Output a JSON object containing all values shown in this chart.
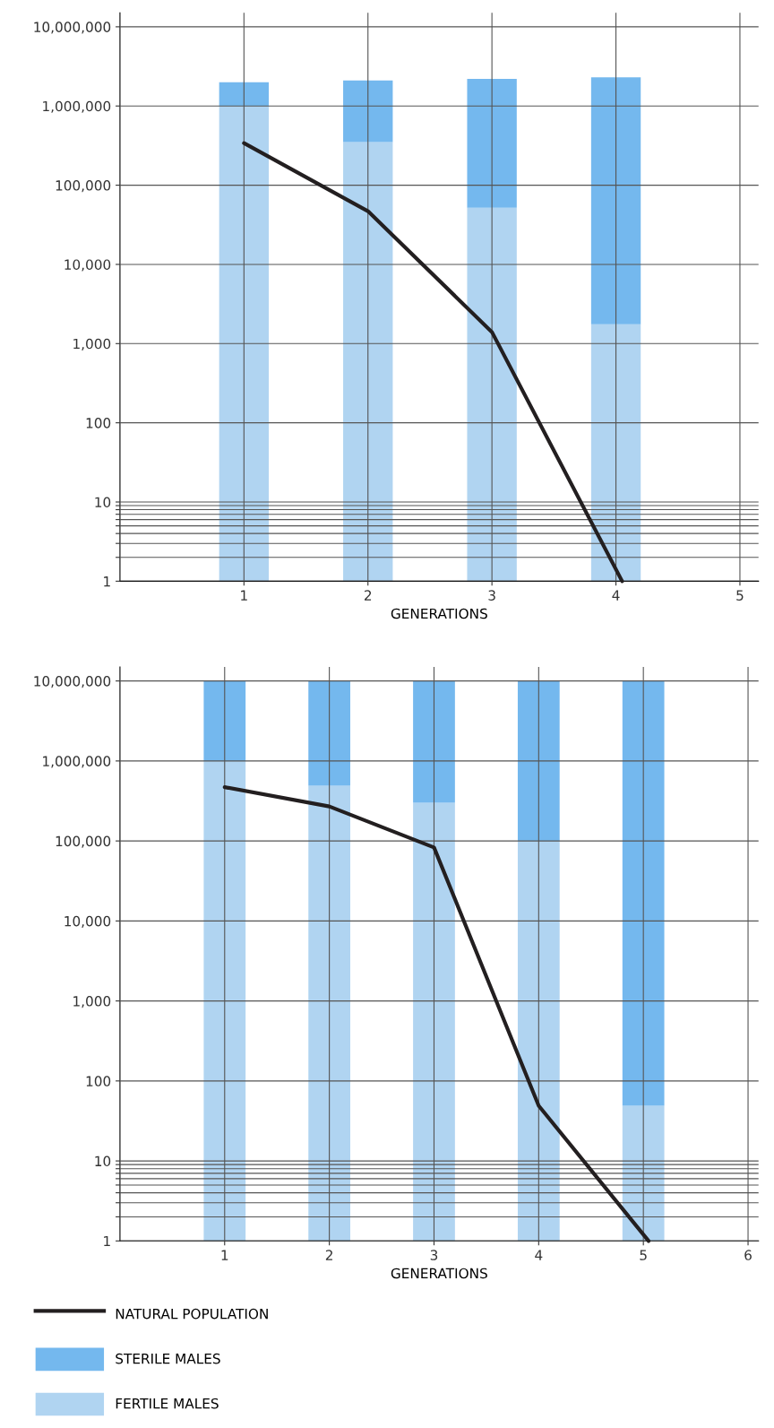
{
  "chart_data": [
    {
      "type": "bar",
      "stacked": true,
      "log": true,
      "x": [
        1,
        2,
        3,
        4
      ],
      "xlabel": "GENERATIONS",
      "xlim": [
        0,
        5.15
      ],
      "xticks": [
        1,
        2,
        3,
        4,
        5
      ],
      "ylim": [
        1,
        15000000
      ],
      "yticks": [
        {
          "value": 1,
          "label": "1"
        },
        {
          "value": 2,
          "label": null
        },
        {
          "value": 3,
          "label": null
        },
        {
          "value": 4,
          "label": null
        },
        {
          "value": 5,
          "label": null
        },
        {
          "value": 6,
          "label": null
        },
        {
          "value": 7,
          "label": null
        },
        {
          "value": 8,
          "label": null
        },
        {
          "value": 9,
          "label": null
        },
        {
          "value": 10,
          "label": "10"
        },
        {
          "value": 100,
          "label": "100"
        },
        {
          "value": 1000,
          "label": "1,000"
        },
        {
          "value": 10000,
          "label": "10,000"
        },
        {
          "value": 100000,
          "label": "100,000"
        },
        {
          "value": 1000000,
          "label": "1,000,000"
        },
        {
          "value": 10000000,
          "label": "10,000,000"
        }
      ],
      "grid": true,
      "legend": false,
      "series": [
        {
          "color": "#b0d4f1",
          "values": [
            1000000,
            350000,
            52000,
            1750
          ]
        },
        {
          "color": "#74b8ee",
          "values": [
            1000000,
            1750000,
            2150000,
            2300000
          ]
        },
        {
          "type": "line",
          "color": "#231f20",
          "x": [
            1,
            2,
            3,
            4.05
          ],
          "values": [
            340000,
            47000,
            1400,
            1
          ]
        }
      ]
    },
    {
      "type": "bar",
      "stacked": true,
      "log": true,
      "x": [
        1,
        2,
        3,
        4,
        5
      ],
      "xlabel": "GENERATIONS",
      "xlim": [
        0,
        6.1
      ],
      "xticks": [
        1,
        2,
        3,
        4,
        5,
        6
      ],
      "ylim": [
        1,
        15000000
      ],
      "yticks": [
        {
          "value": 1,
          "label": "1"
        },
        {
          "value": 2,
          "label": null
        },
        {
          "value": 3,
          "label": null
        },
        {
          "value": 4,
          "label": null
        },
        {
          "value": 5,
          "label": null
        },
        {
          "value": 6,
          "label": null
        },
        {
          "value": 7,
          "label": null
        },
        {
          "value": 8,
          "label": null
        },
        {
          "value": 9,
          "label": null
        },
        {
          "value": 10,
          "label": "10"
        },
        {
          "value": 100,
          "label": "100"
        },
        {
          "value": 1000,
          "label": "1,000"
        },
        {
          "value": 10000,
          "label": "10,000"
        },
        {
          "value": 100000,
          "label": "100,000"
        },
        {
          "value": 1000000,
          "label": "1,000,000"
        },
        {
          "value": 10000000,
          "label": "10,000,000"
        }
      ],
      "grid": true,
      "legend": "bottom",
      "series": [
        {
          "name": "FERTILE MALES",
          "color": "#b0d4f1",
          "values": [
            1000000,
            490000,
            300000,
            100000,
            49
          ]
        },
        {
          "name": "STERILE MALES",
          "color": "#74b8ee",
          "values": [
            9000000,
            9510000,
            9700000,
            9900000,
            10000000
          ]
        },
        {
          "name": "NATURAL POPULATION",
          "type": "line",
          "color": "#231f20",
          "x": [
            1,
            2,
            3,
            4,
            5.05
          ],
          "values": [
            470000,
            270000,
            83000,
            49,
            1
          ]
        }
      ]
    }
  ]
}
